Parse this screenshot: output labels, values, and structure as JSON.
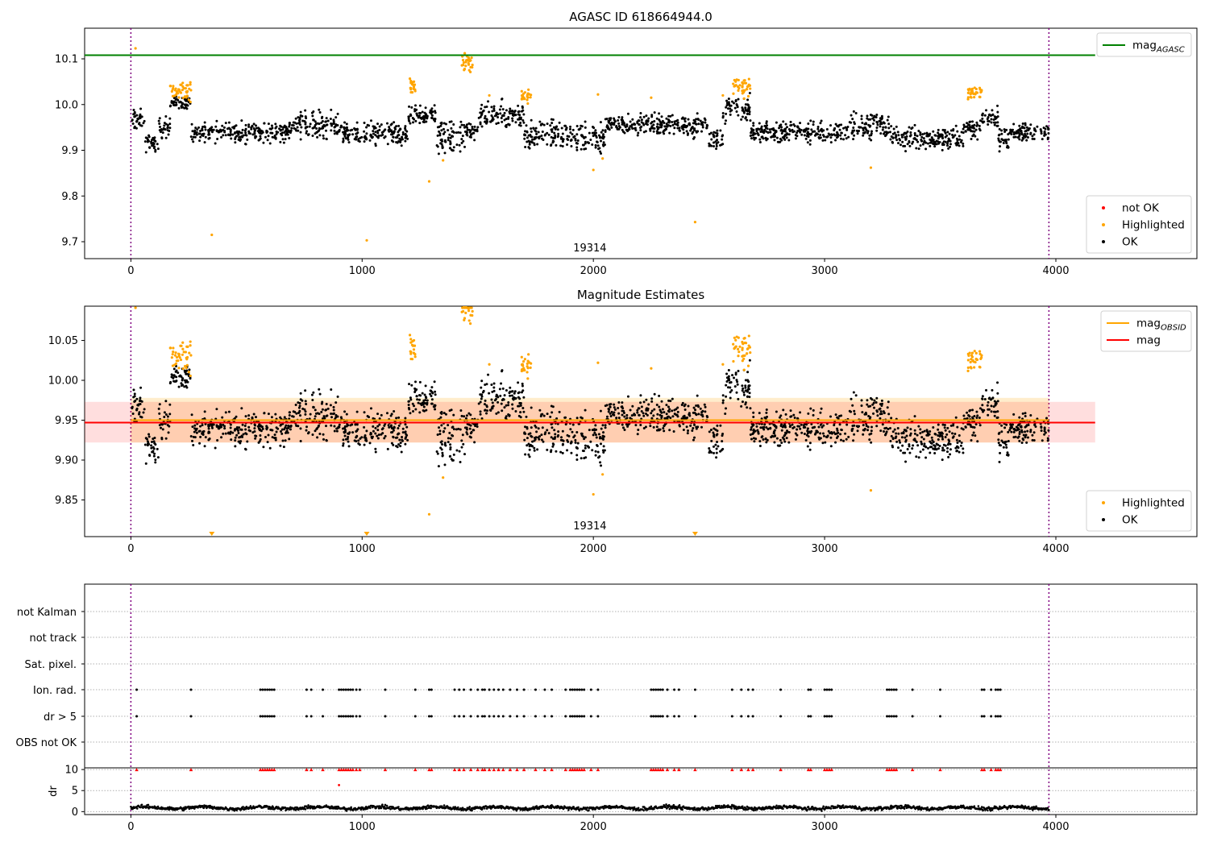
{
  "chart_data": [
    {
      "type": "scatter",
      "title": "AGASC ID 618664944.0",
      "xlim": [
        -200,
        4610
      ],
      "ylim": [
        9.663,
        10.167
      ],
      "xticks": [
        0,
        1000,
        2000,
        3000,
        4000
      ],
      "yticks": [
        9.7,
        9.8,
        9.9,
        10.0,
        10.1
      ],
      "ytick_labels": [
        "9.7",
        "9.8",
        "9.9",
        "10.0",
        "10.1"
      ],
      "obsid_label": {
        "text": "19314",
        "x": 1985
      },
      "obs_boundaries": [
        0,
        3970
      ],
      "reference_lines": [
        {
          "name": "mag_AGASC",
          "value": 10.108,
          "x": [
            -200,
            4170
          ],
          "color": "#008000"
        }
      ],
      "legends": [
        {
          "position": "top-right",
          "entries": [
            {
              "label": "mag",
              "sub": "AGASC",
              "kind": "line",
              "color": "#008000"
            }
          ]
        },
        {
          "position": "lower-right",
          "entries": [
            {
              "label": "not OK",
              "kind": "point",
              "color": "#ff0000"
            },
            {
              "label": "Highlighted",
              "kind": "point",
              "color": "#ffa500"
            },
            {
              "label": "OK",
              "kind": "point",
              "color": "#000000"
            }
          ]
        }
      ],
      "series": [
        {
          "name": "OK",
          "color": "#000000",
          "clusters": [
            [
              0,
              60,
              9.965,
              0.02
            ],
            [
              60,
              120,
              9.915,
              0.015
            ],
            [
              120,
              170,
              9.95,
              0.02
            ],
            [
              170,
              260,
              10.005,
              0.012
            ],
            [
              260,
              700,
              9.94,
              0.018
            ],
            [
              700,
              900,
              9.955,
              0.025
            ],
            [
              900,
              1200,
              9.935,
              0.02
            ],
            [
              1200,
              1320,
              9.975,
              0.02
            ],
            [
              1320,
              1450,
              9.93,
              0.035
            ],
            [
              1450,
              1500,
              9.94,
              0.015
            ],
            [
              1500,
              1700,
              9.975,
              0.025
            ],
            [
              1700,
              1900,
              9.935,
              0.025
            ],
            [
              1900,
              2050,
              9.93,
              0.03
            ],
            [
              2050,
              2500,
              9.955,
              0.02
            ],
            [
              2500,
              2560,
              9.925,
              0.02
            ],
            [
              2560,
              2680,
              9.99,
              0.025
            ],
            [
              2680,
              3100,
              9.94,
              0.018
            ],
            [
              3100,
              3280,
              9.955,
              0.025
            ],
            [
              3280,
              3600,
              9.925,
              0.02
            ],
            [
              3600,
              3680,
              9.945,
              0.02
            ],
            [
              3680,
              3750,
              9.97,
              0.02
            ],
            [
              3750,
              3800,
              9.925,
              0.02
            ],
            [
              3800,
              3970,
              9.94,
              0.015
            ]
          ]
        },
        {
          "name": "Highlighted",
          "color": "#ffa500",
          "clusters": [
            [
              170,
              260,
              10.03,
              0.02
            ],
            [
              1200,
              1230,
              10.04,
              0.018
            ],
            [
              1430,
              1480,
              10.09,
              0.02
            ],
            [
              1690,
              1730,
              10.02,
              0.012
            ],
            [
              2600,
              2680,
              10.04,
              0.02
            ],
            [
              3620,
              3680,
              10.025,
              0.012
            ]
          ],
          "points": [
            [
              20,
              10.123
            ],
            [
              350,
              9.715
            ],
            [
              1020,
              9.703
            ],
            [
              1290,
              9.832
            ],
            [
              1350,
              9.878
            ],
            [
              1550,
              10.02
            ],
            [
              2000,
              9.857
            ],
            [
              2020,
              10.022
            ],
            [
              2040,
              9.882
            ],
            [
              2250,
              10.015
            ],
            [
              2440,
              9.743
            ],
            [
              2560,
              10.02
            ],
            [
              3200,
              9.862
            ]
          ]
        },
        {
          "name": "not OK",
          "color": "#ff0000",
          "points": []
        }
      ]
    },
    {
      "type": "scatter",
      "title": "Magnitude Estimates",
      "xlim": [
        -200,
        4610
      ],
      "ylim": [
        9.804,
        10.093
      ],
      "xticks": [
        0,
        1000,
        2000,
        3000,
        4000
      ],
      "yticks": [
        9.85,
        9.9,
        9.95,
        10.0,
        10.05
      ],
      "ytick_labels": [
        "9.85",
        "9.90",
        "9.95",
        "10.00",
        "10.05"
      ],
      "obsid_label": {
        "text": "19314",
        "x": 1985
      },
      "obs_boundaries": [
        0,
        3970
      ],
      "reference_lines": [
        {
          "name": "mag_OBSID",
          "value": 9.95,
          "x": [
            0,
            3970
          ],
          "color": "#ffa500"
        },
        {
          "name": "mag",
          "value": 9.947,
          "x": [
            -200,
            4170
          ],
          "color": "#ff0000"
        }
      ],
      "bands": [
        {
          "name": "mag_OBSID range",
          "y": [
            9.922,
            9.978
          ],
          "x": [
            0,
            3970
          ],
          "color": "#ffa500",
          "opacity": 0.2
        },
        {
          "name": "mag range",
          "y": [
            9.922,
            9.973
          ],
          "x": [
            -200,
            4170
          ],
          "color": "#ff0000",
          "opacity": 0.13
        }
      ],
      "legends": [
        {
          "position": "top-right",
          "entries": [
            {
              "label": "mag",
              "sub": "OBSID",
              "kind": "line",
              "color": "#ffa500"
            },
            {
              "label": "mag",
              "kind": "line",
              "color": "#ff0000"
            }
          ]
        },
        {
          "position": "lower-right",
          "entries": [
            {
              "label": "Highlighted",
              "kind": "point",
              "color": "#ffa500"
            },
            {
              "label": "OK",
              "kind": "point",
              "color": "#000000"
            }
          ]
        }
      ],
      "series": [
        {
          "name": "OK",
          "color": "#000000",
          "same_as_panel": 0
        },
        {
          "name": "Highlighted",
          "color": "#ffa500",
          "same_as_panel": 0,
          "below_range_markers": [
            350,
            1020,
            2440
          ]
        }
      ]
    },
    {
      "type": "scatter",
      "title": "",
      "xlim": [
        -200,
        4610
      ],
      "xticks": [
        0,
        1000,
        2000,
        3000,
        4000
      ],
      "obs_boundaries": [
        0,
        3970
      ],
      "flag_rows": [
        "not Kalman",
        "not track",
        "Sat. pixel.",
        "Ion. rad.",
        "dr > 5",
        "OBS not OK"
      ],
      "flag_events": {
        "Ion. rad.": [
          25,
          260,
          560,
          570,
          580,
          590,
          600,
          610,
          620,
          760,
          780,
          830,
          900,
          910,
          920,
          930,
          940,
          950,
          960,
          975,
          990,
          1100,
          1230,
          1290,
          1300,
          1400,
          1420,
          1440,
          1470,
          1500,
          1520,
          1530,
          1550,
          1570,
          1590,
          1610,
          1640,
          1670,
          1700,
          1750,
          1790,
          1820,
          1880,
          1900,
          1910,
          1920,
          1930,
          1940,
          1950,
          1960,
          1990,
          2020,
          2250,
          2260,
          2270,
          2280,
          2290,
          2300,
          2320,
          2350,
          2370,
          2440,
          2600,
          2640,
          2670,
          2690,
          2810,
          2930,
          2940,
          3000,
          3010,
          3020,
          3030,
          3270,
          3280,
          3290,
          3300,
          3310,
          3380,
          3500,
          3680,
          3690,
          3720,
          3740,
          3750,
          3760
        ],
        "dr > 5": [
          25,
          260,
          560,
          570,
          580,
          590,
          600,
          610,
          620,
          760,
          780,
          830,
          900,
          910,
          920,
          930,
          940,
          950,
          960,
          975,
          990,
          1100,
          1230,
          1290,
          1300,
          1400,
          1420,
          1440,
          1470,
          1500,
          1520,
          1530,
          1550,
          1570,
          1590,
          1610,
          1640,
          1670,
          1700,
          1750,
          1790,
          1820,
          1880,
          1900,
          1910,
          1920,
          1930,
          1940,
          1950,
          1960,
          1990,
          2020,
          2250,
          2260,
          2270,
          2280,
          2290,
          2300,
          2320,
          2350,
          2370,
          2440,
          2600,
          2640,
          2670,
          2690,
          2810,
          2930,
          2940,
          3000,
          3010,
          3020,
          3030,
          3270,
          3280,
          3290,
          3300,
          3310,
          3380,
          3500,
          3680,
          3690,
          3720,
          3740,
          3750,
          3760
        ]
      },
      "dr": {
        "ylabel": "dr",
        "ylim": [
          -0.7,
          10.4
        ],
        "yticks": [
          0,
          5,
          10
        ],
        "baseline_mean": 0.9,
        "baseline_jitter": 0.45,
        "extra_points": [
          [
            900,
            6.3
          ]
        ],
        "clipped_color": "#ff0000"
      }
    }
  ]
}
